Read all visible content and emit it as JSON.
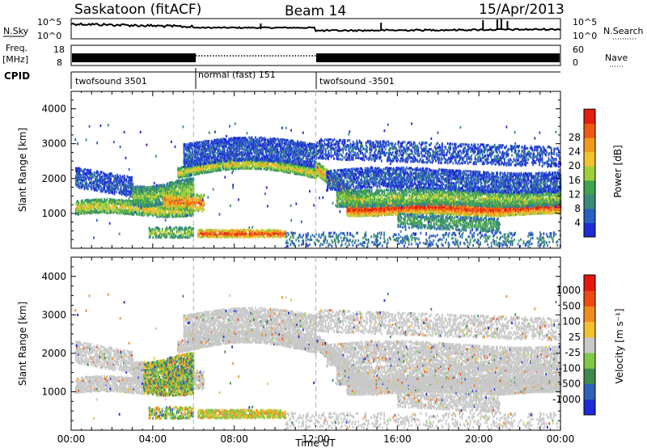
{
  "header": {
    "station": "Saskatoon (fitACF)",
    "beam": "Beam 14",
    "date": "15/Apr/2013"
  },
  "noise_panel": {
    "left_label": "N.Sky",
    "right_label": "N.Search",
    "left_ticks": [
      "10^5",
      "10^0"
    ],
    "right_ticks": [
      "10^5",
      "10^0"
    ]
  },
  "freq_panel": {
    "left_label_line1": "Freq.",
    "left_label_line2": "[MHz]",
    "right_label": "Nave",
    "left_ticks": [
      "18",
      "8"
    ],
    "right_ticks": [
      "60",
      "0"
    ]
  },
  "cpid_panel": {
    "label": "CPID",
    "segments": [
      {
        "name": "twofsound 3501",
        "start_h": 0,
        "end_h": 6
      },
      {
        "name": "normal (fast) 151",
        "start_h": 6,
        "end_h": 12
      },
      {
        "name": "twofsound -3501",
        "start_h": 12,
        "end_h": 24
      }
    ]
  },
  "chart_data": [
    {
      "type": "heatmap",
      "panel": "power",
      "ylabel": "Slant Range [km]",
      "xlabel": "",
      "ylim": [
        0,
        4500
      ],
      "xlim_hours": [
        0,
        24
      ],
      "yticks": [
        1000,
        2000,
        3000,
        4000
      ],
      "colorbar": {
        "label": "Power [dB]",
        "ticks": [
          "4",
          "8",
          "12",
          "16",
          "20",
          "24",
          "28"
        ],
        "colors": [
          "#1e2bd6",
          "#2a5fc4",
          "#3a8a7a",
          "#3fa34f",
          "#9ecf3a",
          "#f1c232",
          "#f29a1f",
          "#ee5a14",
          "#e61d0e"
        ]
      }
    },
    {
      "type": "heatmap",
      "panel": "velocity",
      "ylabel": "Slant Range [km]",
      "xlabel": "Time UT",
      "ylim": [
        0,
        4500
      ],
      "xlim_hours": [
        0,
        24
      ],
      "yticks": [
        1000,
        2000,
        3000,
        4000
      ],
      "xticks": [
        "00:00",
        "04:00",
        "08:00",
        "12:00",
        "16:00",
        "20:00",
        "00:00"
      ],
      "colorbar": {
        "label": "Velocity [m s⁻¹]",
        "ticks": [
          "1000",
          "500",
          "100",
          "25",
          "-25",
          "-100",
          "-500",
          "-1000"
        ],
        "colors": [
          "#1e2bd6",
          "#2f61b8",
          "#3f8a4a",
          "#7fc946",
          "#c8c8c8",
          "#f2c12e",
          "#f28b1f",
          "#ee4a12",
          "#e6170c"
        ]
      }
    }
  ]
}
